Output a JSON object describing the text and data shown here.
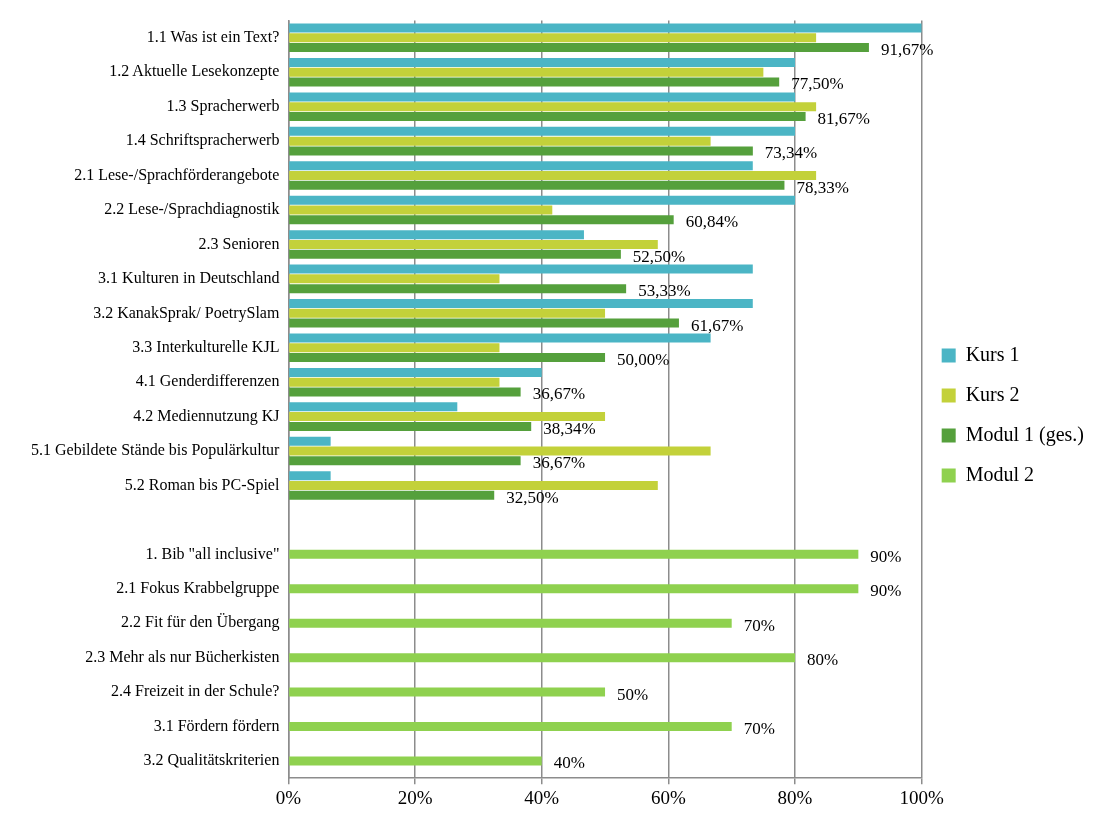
{
  "chart_data": {
    "type": "bar",
    "orientation": "horizontal",
    "categories": [
      "1.1 Was ist ein Text?",
      "1.2 Aktuelle Lesekonzepte",
      "1.3 Spracherwerb",
      "1.4 Schriftspracherwerb",
      "2.1 Lese-/Sprachförderangebote",
      "2.2 Lese-/Sprachdiagnostik",
      "2.3 Senioren",
      "3.1 Kulturen in Deutschland",
      "3.2 KanakSprak/ PoetrySlam",
      "3.3 Interkulturelle KJL",
      "4.1 Genderdifferenzen",
      "4.2 Mediennutzung KJ",
      "5.1 Gebildete Stände bis Populärkultur",
      "5.2 Roman bis PC-Spiel",
      null,
      "1. Bib \"all inclusive\"",
      "2.1 Fokus Krabbelgruppe",
      "2.2 Fit für den Übergang",
      "2.3 Mehr als nur Bücherkisten",
      "2.4 Freizeit in der Schule?",
      "3.1 Fördern fördern",
      "3.2 Qualitätskriterien"
    ],
    "series": [
      {
        "name": "Kurs 1",
        "color": "#4bb5c5",
        "values": [
          100,
          80,
          80,
          80,
          73.33,
          80,
          46.67,
          73.33,
          73.33,
          66.67,
          40,
          26.67,
          6.67,
          6.67,
          null,
          null,
          null,
          null,
          null,
          null,
          null,
          null
        ]
      },
      {
        "name": "Kurs 2",
        "color": "#c3d13a",
        "values": [
          83.33,
          75,
          83.33,
          66.67,
          83.33,
          41.67,
          58.33,
          33.33,
          50,
          33.33,
          33.33,
          50,
          66.67,
          58.33,
          null,
          null,
          null,
          null,
          null,
          null,
          null,
          null
        ]
      },
      {
        "name": "Modul 1 (ges.)",
        "color": "#55a03c",
        "values": [
          91.67,
          77.5,
          81.67,
          73.34,
          78.33,
          60.84,
          52.5,
          53.33,
          61.67,
          50,
          36.67,
          38.34,
          36.67,
          32.5,
          null,
          null,
          null,
          null,
          null,
          null,
          null,
          null
        ],
        "value_labels": [
          "91,67%",
          "77,50%",
          "81,67%",
          "73,34%",
          "78,33%",
          "60,84%",
          "52,50%",
          "53,33%",
          "61,67%",
          "50,00%",
          "36,67%",
          "38,34%",
          "36,67%",
          "32,50%",
          null,
          null,
          null,
          null,
          null,
          null,
          null,
          null
        ]
      },
      {
        "name": "Modul 2",
        "color": "#8fd14f",
        "values": [
          null,
          null,
          null,
          null,
          null,
          null,
          null,
          null,
          null,
          null,
          null,
          null,
          null,
          null,
          null,
          90,
          90,
          70,
          80,
          50,
          70,
          40
        ],
        "value_labels": [
          null,
          null,
          null,
          null,
          null,
          null,
          null,
          null,
          null,
          null,
          null,
          null,
          null,
          null,
          null,
          "90%",
          "90%",
          "70%",
          "80%",
          "50%",
          "70%",
          "40%"
        ]
      }
    ],
    "xlim": [
      0,
      100
    ],
    "xticks": [
      {
        "value": 0,
        "label": "0%"
      },
      {
        "value": 20,
        "label": "20%"
      },
      {
        "value": 40,
        "label": "40%"
      },
      {
        "value": 60,
        "label": "60%"
      },
      {
        "value": 80,
        "label": "80%"
      },
      {
        "value": 100,
        "label": "100%"
      }
    ],
    "grid": "x",
    "legend": "right"
  }
}
